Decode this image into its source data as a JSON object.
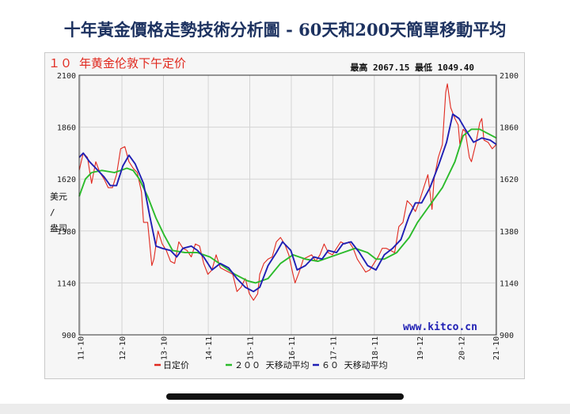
{
  "page": {
    "title": "十年黃金價格走勢技術分析圖 - 60天和200天簡單移動平均"
  },
  "chart_data": {
    "type": "line",
    "title": "１０ 年黄金伦敦下午定价",
    "stats_text": "最高 2067.15  最低 1049.40",
    "ylabel": "美元/盎司",
    "ylim": [
      900,
      2100
    ],
    "yticks": [
      900,
      1140,
      1380,
      1620,
      1860,
      2100
    ],
    "ytick_labels": [
      "900",
      "1140",
      "1380",
      "1620",
      "1860",
      "2100"
    ],
    "xlim": [
      2011.75,
      2021.8
    ],
    "xticks": [
      2011.78,
      2012.78,
      2013.78,
      2014.86,
      2015.86,
      2016.86,
      2017.86,
      2018.86,
      2019.95,
      2020.95,
      2021.78
    ],
    "xtick_labels": [
      "11-10",
      "12-10",
      "13-10",
      "14-11",
      "15-11",
      "16-11",
      "17-11",
      "18-11",
      "19-12",
      "20-12",
      "21-10"
    ],
    "watermark": "www.kitco.cn",
    "grid": true,
    "legend_position": "bottom",
    "series": [
      {
        "name": "日定价",
        "color": "#e0281e",
        "points": [
          [
            2011.75,
            1660
          ],
          [
            2011.85,
            1740
          ],
          [
            2011.95,
            1720
          ],
          [
            2012.05,
            1600
          ],
          [
            2012.15,
            1700
          ],
          [
            2012.25,
            1650
          ],
          [
            2012.35,
            1620
          ],
          [
            2012.45,
            1580
          ],
          [
            2012.55,
            1580
          ],
          [
            2012.65,
            1640
          ],
          [
            2012.75,
            1760
          ],
          [
            2012.85,
            1770
          ],
          [
            2012.95,
            1700
          ],
          [
            2013.05,
            1670
          ],
          [
            2013.15,
            1650
          ],
          [
            2013.25,
            1560
          ],
          [
            2013.3,
            1420
          ],
          [
            2013.4,
            1420
          ],
          [
            2013.5,
            1220
          ],
          [
            2013.55,
            1250
          ],
          [
            2013.65,
            1380
          ],
          [
            2013.75,
            1320
          ],
          [
            2013.85,
            1290
          ],
          [
            2013.95,
            1240
          ],
          [
            2014.05,
            1230
          ],
          [
            2014.15,
            1330
          ],
          [
            2014.25,
            1300
          ],
          [
            2014.35,
            1290
          ],
          [
            2014.45,
            1260
          ],
          [
            2014.55,
            1320
          ],
          [
            2014.65,
            1310
          ],
          [
            2014.75,
            1230
          ],
          [
            2014.85,
            1180
          ],
          [
            2014.95,
            1200
          ],
          [
            2015.05,
            1270
          ],
          [
            2015.15,
            1210
          ],
          [
            2015.25,
            1200
          ],
          [
            2015.35,
            1190
          ],
          [
            2015.45,
            1180
          ],
          [
            2015.55,
            1100
          ],
          [
            2015.65,
            1120
          ],
          [
            2015.75,
            1160
          ],
          [
            2015.85,
            1090
          ],
          [
            2015.95,
            1060
          ],
          [
            2016.05,
            1090
          ],
          [
            2016.1,
            1180
          ],
          [
            2016.2,
            1230
          ],
          [
            2016.3,
            1250
          ],
          [
            2016.4,
            1260
          ],
          [
            2016.5,
            1330
          ],
          [
            2016.6,
            1350
          ],
          [
            2016.7,
            1320
          ],
          [
            2016.8,
            1270
          ],
          [
            2016.9,
            1180
          ],
          [
            2016.95,
            1140
          ],
          [
            2017.05,
            1190
          ],
          [
            2017.15,
            1250
          ],
          [
            2017.25,
            1260
          ],
          [
            2017.35,
            1270
          ],
          [
            2017.45,
            1240
          ],
          [
            2017.55,
            1270
          ],
          [
            2017.65,
            1320
          ],
          [
            2017.75,
            1280
          ],
          [
            2017.85,
            1270
          ],
          [
            2017.95,
            1300
          ],
          [
            2018.05,
            1330
          ],
          [
            2018.15,
            1320
          ],
          [
            2018.25,
            1330
          ],
          [
            2018.35,
            1300
          ],
          [
            2018.45,
            1250
          ],
          [
            2018.55,
            1220
          ],
          [
            2018.65,
            1190
          ],
          [
            2018.75,
            1200
          ],
          [
            2018.85,
            1230
          ],
          [
            2018.95,
            1260
          ],
          [
            2019.05,
            1300
          ],
          [
            2019.15,
            1300
          ],
          [
            2019.25,
            1290
          ],
          [
            2019.35,
            1280
          ],
          [
            2019.45,
            1400
          ],
          [
            2019.55,
            1420
          ],
          [
            2019.65,
            1520
          ],
          [
            2019.75,
            1500
          ],
          [
            2019.85,
            1470
          ],
          [
            2019.95,
            1520
          ],
          [
            2020.05,
            1580
          ],
          [
            2020.15,
            1640
          ],
          [
            2020.25,
            1480
          ],
          [
            2020.3,
            1620
          ],
          [
            2020.4,
            1720
          ],
          [
            2020.5,
            1780
          ],
          [
            2020.58,
            2020
          ],
          [
            2020.62,
            2060
          ],
          [
            2020.7,
            1950
          ],
          [
            2020.8,
            1900
          ],
          [
            2020.88,
            1870
          ],
          [
            2020.92,
            1780
          ],
          [
            2021.0,
            1850
          ],
          [
            2021.05,
            1840
          ],
          [
            2021.15,
            1720
          ],
          [
            2021.2,
            1700
          ],
          [
            2021.3,
            1780
          ],
          [
            2021.4,
            1880
          ],
          [
            2021.45,
            1900
          ],
          [
            2021.5,
            1800
          ],
          [
            2021.6,
            1790
          ],
          [
            2021.7,
            1760
          ],
          [
            2021.8,
            1780
          ]
        ]
      },
      {
        "name": "２００ 天移动平均",
        "color": "#2bbb2b",
        "points": [
          [
            2011.75,
            1540
          ],
          [
            2011.9,
            1620
          ],
          [
            2012.05,
            1650
          ],
          [
            2012.3,
            1660
          ],
          [
            2012.6,
            1650
          ],
          [
            2012.9,
            1670
          ],
          [
            2013.05,
            1660
          ],
          [
            2013.2,
            1620
          ],
          [
            2013.4,
            1540
          ],
          [
            2013.6,
            1440
          ],
          [
            2013.8,
            1360
          ],
          [
            2014.0,
            1290
          ],
          [
            2014.3,
            1280
          ],
          [
            2014.6,
            1280
          ],
          [
            2014.9,
            1260
          ],
          [
            2015.2,
            1220
          ],
          [
            2015.5,
            1180
          ],
          [
            2015.8,
            1150
          ],
          [
            2016.0,
            1140
          ],
          [
            2016.3,
            1160
          ],
          [
            2016.6,
            1230
          ],
          [
            2016.9,
            1270
          ],
          [
            2017.2,
            1250
          ],
          [
            2017.5,
            1240
          ],
          [
            2017.8,
            1260
          ],
          [
            2018.1,
            1280
          ],
          [
            2018.4,
            1300
          ],
          [
            2018.7,
            1280
          ],
          [
            2018.9,
            1250
          ],
          [
            2019.1,
            1250
          ],
          [
            2019.4,
            1280
          ],
          [
            2019.7,
            1350
          ],
          [
            2019.9,
            1420
          ],
          [
            2020.2,
            1500
          ],
          [
            2020.5,
            1580
          ],
          [
            2020.8,
            1700
          ],
          [
            2021.0,
            1820
          ],
          [
            2021.2,
            1850
          ],
          [
            2021.4,
            1850
          ],
          [
            2021.6,
            1830
          ],
          [
            2021.8,
            1810
          ]
        ]
      },
      {
        "name": "６０ 天移动平均",
        "color": "#1f1fb4",
        "points": [
          [
            2011.75,
            1720
          ],
          [
            2011.85,
            1740
          ],
          [
            2012.0,
            1700
          ],
          [
            2012.15,
            1670
          ],
          [
            2012.35,
            1630
          ],
          [
            2012.5,
            1590
          ],
          [
            2012.65,
            1590
          ],
          [
            2012.8,
            1680
          ],
          [
            2012.95,
            1730
          ],
          [
            2013.1,
            1690
          ],
          [
            2013.3,
            1600
          ],
          [
            2013.45,
            1450
          ],
          [
            2013.6,
            1310
          ],
          [
            2013.75,
            1300
          ],
          [
            2013.95,
            1290
          ],
          [
            2014.1,
            1260
          ],
          [
            2014.25,
            1300
          ],
          [
            2014.45,
            1310
          ],
          [
            2014.6,
            1290
          ],
          [
            2014.75,
            1260
          ],
          [
            2014.95,
            1200
          ],
          [
            2015.15,
            1230
          ],
          [
            2015.35,
            1210
          ],
          [
            2015.55,
            1160
          ],
          [
            2015.75,
            1120
          ],
          [
            2015.95,
            1100
          ],
          [
            2016.1,
            1120
          ],
          [
            2016.3,
            1220
          ],
          [
            2016.5,
            1280
          ],
          [
            2016.65,
            1330
          ],
          [
            2016.85,
            1290
          ],
          [
            2017.0,
            1200
          ],
          [
            2017.2,
            1220
          ],
          [
            2017.4,
            1260
          ],
          [
            2017.6,
            1250
          ],
          [
            2017.75,
            1290
          ],
          [
            2017.95,
            1280
          ],
          [
            2018.1,
            1320
          ],
          [
            2018.3,
            1330
          ],
          [
            2018.5,
            1280
          ],
          [
            2018.7,
            1220
          ],
          [
            2018.9,
            1200
          ],
          [
            2019.1,
            1270
          ],
          [
            2019.3,
            1300
          ],
          [
            2019.5,
            1340
          ],
          [
            2019.7,
            1450
          ],
          [
            2019.85,
            1510
          ],
          [
            2020.0,
            1510
          ],
          [
            2020.2,
            1580
          ],
          [
            2020.4,
            1680
          ],
          [
            2020.6,
            1790
          ],
          [
            2020.75,
            1920
          ],
          [
            2020.9,
            1900
          ],
          [
            2021.05,
            1850
          ],
          [
            2021.25,
            1790
          ],
          [
            2021.45,
            1810
          ],
          [
            2021.65,
            1800
          ],
          [
            2021.8,
            1780
          ]
        ]
      }
    ]
  }
}
